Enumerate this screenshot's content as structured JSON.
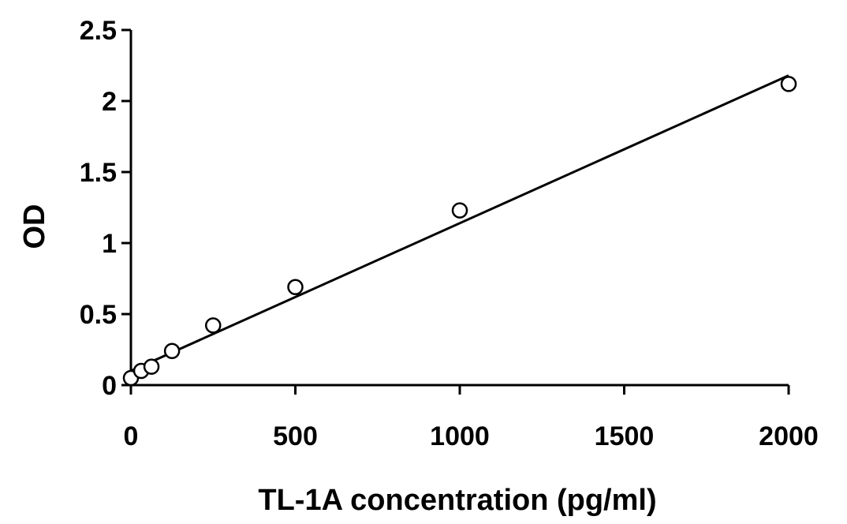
{
  "chart_data": {
    "type": "scatter",
    "xlabel": "TL-1A concentration (pg/ml)",
    "ylabel": "OD",
    "xlim": [
      0,
      2000
    ],
    "ylim": [
      0,
      2.5
    ],
    "x_ticks": [
      0,
      500,
      1000,
      1500,
      2000
    ],
    "y_ticks": [
      0,
      0.5,
      1,
      1.5,
      2,
      2.5
    ],
    "x_tick_labels": [
      "0",
      "500",
      "1000",
      "1500",
      "2000"
    ],
    "y_tick_labels": [
      "0",
      "0.5",
      "1",
      "1.5",
      "2",
      "2.5"
    ],
    "grid": false,
    "series": [
      {
        "marker": "open-circle",
        "points": [
          {
            "x": 0,
            "y": 0.05
          },
          {
            "x": 31.25,
            "y": 0.1
          },
          {
            "x": 62.5,
            "y": 0.13
          },
          {
            "x": 125,
            "y": 0.24
          },
          {
            "x": 250,
            "y": 0.42
          },
          {
            "x": 500,
            "y": 0.69
          },
          {
            "x": 1000,
            "y": 1.23
          },
          {
            "x": 2000,
            "y": 2.12
          }
        ]
      }
    ],
    "trendline": {
      "type": "linear",
      "x": [
        0,
        2000
      ],
      "y": [
        0.1,
        2.18
      ]
    },
    "colors": {
      "axis": "#000000",
      "marker_stroke": "#000000",
      "marker_fill": "#ffffff",
      "line": "#000000"
    }
  }
}
